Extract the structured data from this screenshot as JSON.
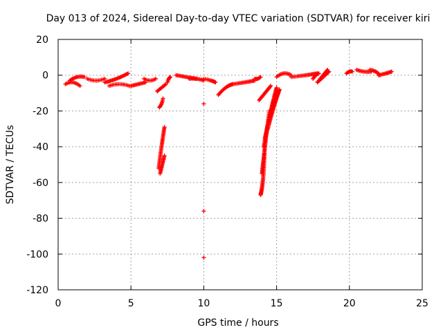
{
  "chart_data": {
    "type": "scatter",
    "title": "Day 013 of 2024, Sidereal Day-to-day VTEC variation (SDTVAR) for receiver kiri",
    "xlabel": "GPS time / hours",
    "ylabel": "SDTVAR / TECUs",
    "xlim": [
      0,
      25
    ],
    "ylim": [
      -120,
      20
    ],
    "xticks": [
      0,
      5,
      10,
      15,
      20,
      25
    ],
    "xtick_labels": [
      "0",
      "5",
      "10",
      "15",
      "20",
      "25"
    ],
    "yticks": [
      20,
      0,
      -20,
      -40,
      -60,
      -80,
      -100,
      -120
    ],
    "ytick_labels": [
      "20",
      "0",
      "-20",
      "-40",
      "-60",
      "-80",
      "-100",
      "-120"
    ],
    "grid": true,
    "marker": "+",
    "color": "#ff0000",
    "arcs": [
      {
        "x": [
          0.5,
          1.0,
          1.5
        ],
        "y": [
          -5,
          -4,
          -6
        ]
      },
      {
        "x": [
          0.8,
          1.3,
          1.8
        ],
        "y": [
          -3,
          -1,
          -1
        ]
      },
      {
        "x": [
          2.0,
          2.6,
          3.2
        ],
        "y": [
          -2,
          -3,
          -2
        ]
      },
      {
        "x": [
          3.2,
          4.0,
          4.8
        ],
        "y": [
          -4,
          -2,
          1
        ]
      },
      {
        "x": [
          3.5,
          4.2,
          4.9
        ],
        "y": [
          -6,
          -5,
          -6
        ]
      },
      {
        "x": [
          5.0,
          5.5,
          6.0
        ],
        "y": [
          -6,
          -5,
          -4
        ]
      },
      {
        "x": [
          5.9,
          6.3,
          6.7
        ],
        "y": [
          -2,
          -3,
          -2
        ]
      },
      {
        "x": [
          6.8,
          7.1,
          7.4
        ],
        "y": [
          -9,
          -7,
          -5
        ]
      },
      {
        "x": [
          6.95,
          7.1,
          7.2
        ],
        "y": [
          -18,
          -16,
          -13
        ]
      },
      {
        "x": [
          6.9,
          7.1,
          7.3
        ],
        "y": [
          -52,
          -40,
          -29
        ]
      },
      {
        "x": [
          7.0,
          7.15,
          7.3
        ],
        "y": [
          -55,
          -50,
          -45
        ]
      },
      {
        "x": [
          7.5,
          7.6,
          7.7
        ],
        "y": [
          -4,
          -2,
          -1
        ]
      },
      {
        "x": [
          8.1,
          8.8,
          9.5
        ],
        "y": [
          0,
          -1,
          -2
        ]
      },
      {
        "x": [
          9.0,
          9.5,
          10.0
        ],
        "y": [
          -2,
          -2,
          -3
        ]
      },
      {
        "x": [
          10.0,
          10.5,
          10.8
        ],
        "y": [
          -2,
          -3,
          -4
        ]
      },
      {
        "x": [
          10.0
        ],
        "y": [
          -16
        ]
      },
      {
        "x": [
          10.0
        ],
        "y": [
          -76
        ]
      },
      {
        "x": [
          10.0
        ],
        "y": [
          -102
        ]
      },
      {
        "x": [
          11.0,
          11.5,
          12.0
        ],
        "y": [
          -11,
          -7,
          -5
        ]
      },
      {
        "x": [
          12.0,
          12.8,
          13.5
        ],
        "y": [
          -5,
          -4,
          -3
        ]
      },
      {
        "x": [
          13.5,
          13.7,
          13.9
        ],
        "y": [
          -2,
          -2,
          -1
        ]
      },
      {
        "x": [
          13.8,
          14.2,
          14.6
        ],
        "y": [
          -14,
          -10,
          -6
        ]
      },
      {
        "x": [
          13.9,
          14.1,
          14.2
        ],
        "y": [
          -67,
          -55,
          -35
        ]
      },
      {
        "x": [
          14.0,
          14.2,
          14.5
        ],
        "y": [
          -55,
          -40,
          -20
        ]
      },
      {
        "x": [
          14.1,
          14.5,
          14.8
        ],
        "y": [
          -40,
          -25,
          -14
        ]
      },
      {
        "x": [
          14.2,
          14.6,
          15.0
        ],
        "y": [
          -35,
          -20,
          -7
        ]
      },
      {
        "x": [
          14.4,
          14.8,
          15.1
        ],
        "y": [
          -30,
          -18,
          -10
        ]
      },
      {
        "x": [
          14.5,
          14.9,
          15.2
        ],
        "y": [
          -25,
          -15,
          -8
        ]
      },
      {
        "x": [
          15.0,
          15.5,
          16.0
        ],
        "y": [
          -1,
          1,
          0
        ]
      },
      {
        "x": [
          16.0,
          17.0,
          17.8
        ],
        "y": [
          -1,
          0,
          1
        ]
      },
      {
        "x": [
          17.5,
          17.7,
          17.9
        ],
        "y": [
          -2,
          0,
          1
        ]
      },
      {
        "x": [
          17.8,
          18.2,
          18.6
        ],
        "y": [
          -4,
          -1,
          2
        ]
      },
      {
        "x": [
          17.9,
          18.2,
          18.5
        ],
        "y": [
          -3,
          0,
          3
        ]
      },
      {
        "x": [
          19.8,
          20.0,
          20.2
        ],
        "y": [
          1,
          2,
          2
        ]
      },
      {
        "x": [
          20.5,
          21.0,
          21.5
        ],
        "y": [
          3,
          2,
          2
        ]
      },
      {
        "x": [
          21.4,
          21.8,
          22.1
        ],
        "y": [
          3,
          2,
          0
        ]
      },
      {
        "x": [
          22.0,
          22.5,
          22.9
        ],
        "y": [
          0,
          1,
          2
        ]
      }
    ]
  }
}
